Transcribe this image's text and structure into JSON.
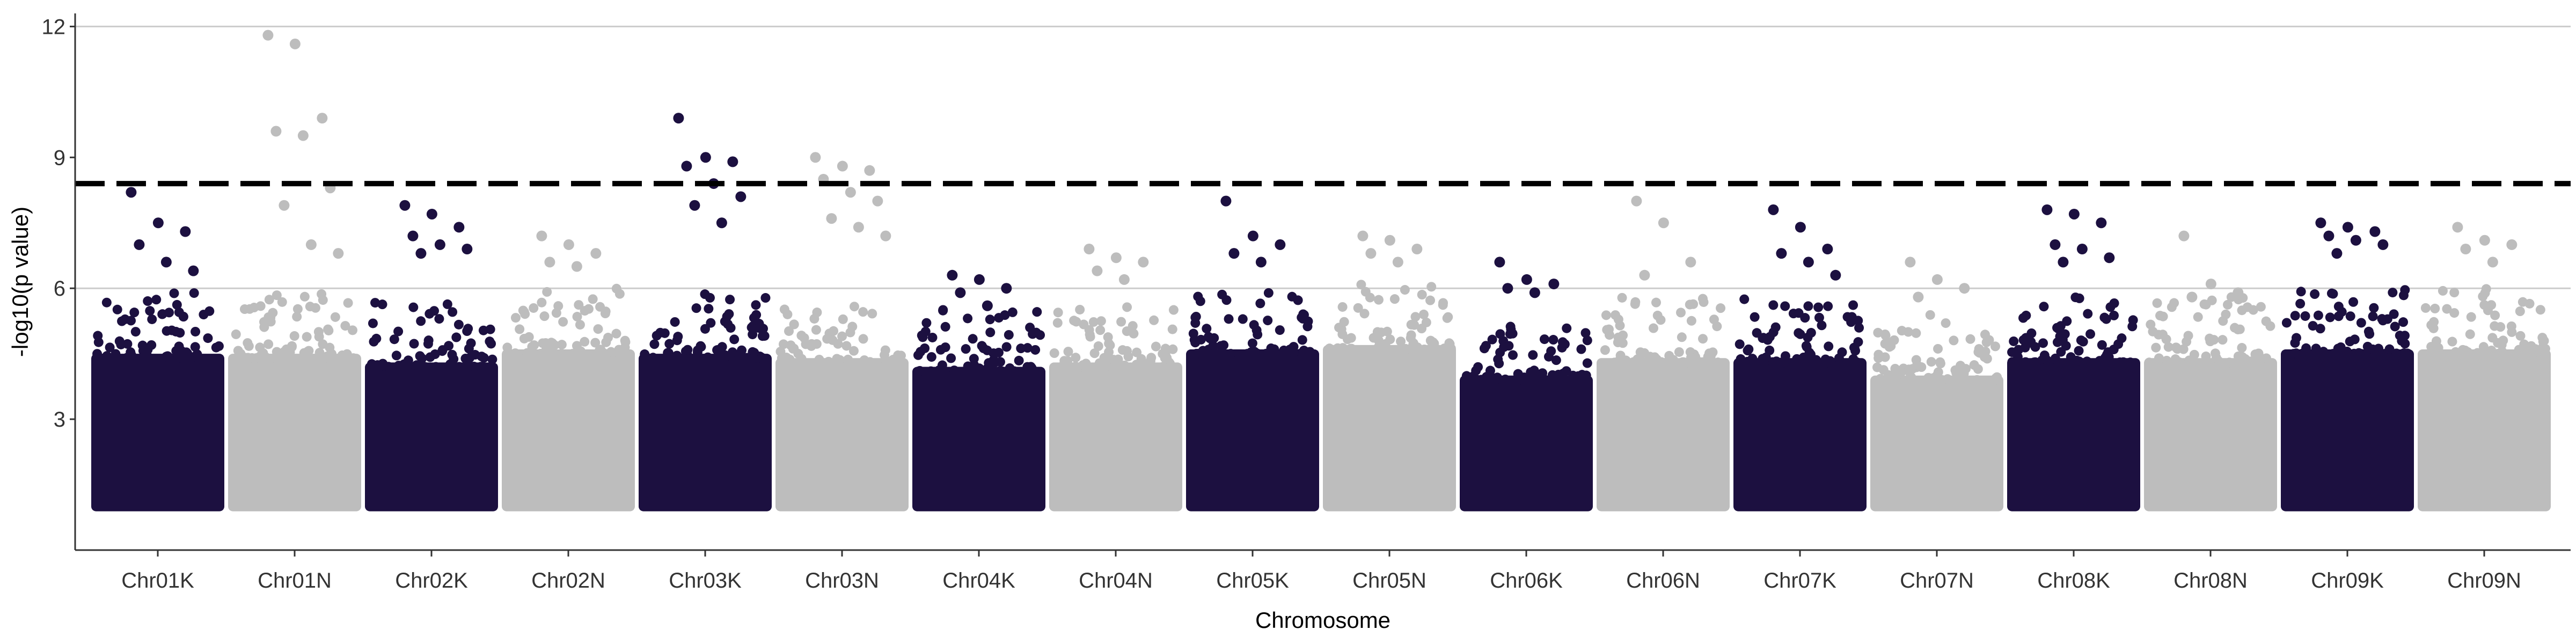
{
  "chart_data": {
    "type": "scatter",
    "subtype": "manhattan",
    "xlabel": "Chromosome",
    "ylabel": "-log10(p value)",
    "categories": [
      "Chr01K",
      "Chr01N",
      "Chr02K",
      "Chr02N",
      "Chr03K",
      "Chr03N",
      "Chr04K",
      "Chr04N",
      "Chr05K",
      "Chr05N",
      "Chr06K",
      "Chr06N",
      "Chr07K",
      "Chr07N",
      "Chr08K",
      "Chr08N",
      "Chr09K",
      "Chr09N"
    ],
    "y_ticks": [
      3,
      6,
      9,
      12
    ],
    "ylim": [
      0,
      12.3
    ],
    "grid": "horizontal-major",
    "legend": "none",
    "threshold_line": {
      "y": 8.4,
      "style": "dashed",
      "color": "#000000"
    },
    "colors": {
      "odd": "#1c1040",
      "even": "#bdbdbd"
    },
    "baseline_min": 1.0,
    "band_upper": [
      4.8,
      4.8,
      4.6,
      4.9,
      4.8,
      4.7,
      4.5,
      4.6,
      4.9,
      5.0,
      4.3,
      4.7,
      4.7,
      4.3,
      4.7,
      4.7,
      4.9,
      4.9
    ],
    "top_hits": [
      {
        "chr": "Chr01K",
        "y": [
          8.2,
          7.5,
          7.3,
          7.0,
          6.6,
          6.4
        ]
      },
      {
        "chr": "Chr01N",
        "y": [
          11.8,
          11.6,
          9.9,
          9.6,
          9.5,
          8.3,
          7.9,
          7.0,
          6.8
        ]
      },
      {
        "chr": "Chr02K",
        "y": [
          7.9,
          7.7,
          7.4,
          7.2,
          7.0,
          6.9,
          6.8
        ]
      },
      {
        "chr": "Chr02N",
        "y": [
          7.2,
          7.0,
          6.8,
          6.6,
          6.5
        ]
      },
      {
        "chr": "Chr03K",
        "y": [
          9.9,
          9.0,
          8.9,
          8.8,
          8.4,
          8.1,
          7.9,
          7.5
        ]
      },
      {
        "chr": "Chr03N",
        "y": [
          9.0,
          8.8,
          8.7,
          8.5,
          8.2,
          8.0,
          7.6,
          7.4,
          7.2
        ]
      },
      {
        "chr": "Chr04K",
        "y": [
          6.3,
          6.2,
          6.0,
          5.9,
          5.6
        ]
      },
      {
        "chr": "Chr04N",
        "y": [
          6.9,
          6.7,
          6.6,
          6.4,
          6.2
        ]
      },
      {
        "chr": "Chr05K",
        "y": [
          8.0,
          7.2,
          7.0,
          6.8,
          6.6
        ]
      },
      {
        "chr": "Chr05N",
        "y": [
          7.2,
          7.1,
          6.9,
          6.8,
          6.6
        ]
      },
      {
        "chr": "Chr06K",
        "y": [
          6.6,
          6.2,
          6.1,
          6.0,
          5.9
        ]
      },
      {
        "chr": "Chr06N",
        "y": [
          8.0,
          7.5,
          6.6,
          6.3
        ]
      },
      {
        "chr": "Chr07K",
        "y": [
          7.8,
          7.4,
          6.9,
          6.8,
          6.6,
          6.3
        ]
      },
      {
        "chr": "Chr07N",
        "y": [
          6.6,
          6.2,
          6.0,
          5.8
        ]
      },
      {
        "chr": "Chr08K",
        "y": [
          7.8,
          7.7,
          7.5,
          7.0,
          6.9,
          6.7,
          6.6
        ]
      },
      {
        "chr": "Chr08N",
        "y": [
          7.2,
          6.1,
          5.9,
          5.8
        ]
      },
      {
        "chr": "Chr09K",
        "y": [
          7.5,
          7.4,
          7.3,
          7.2,
          7.1,
          7.0,
          6.8
        ]
      },
      {
        "chr": "Chr09N",
        "y": [
          7.4,
          7.1,
          7.0,
          6.9,
          6.6
        ]
      }
    ]
  }
}
